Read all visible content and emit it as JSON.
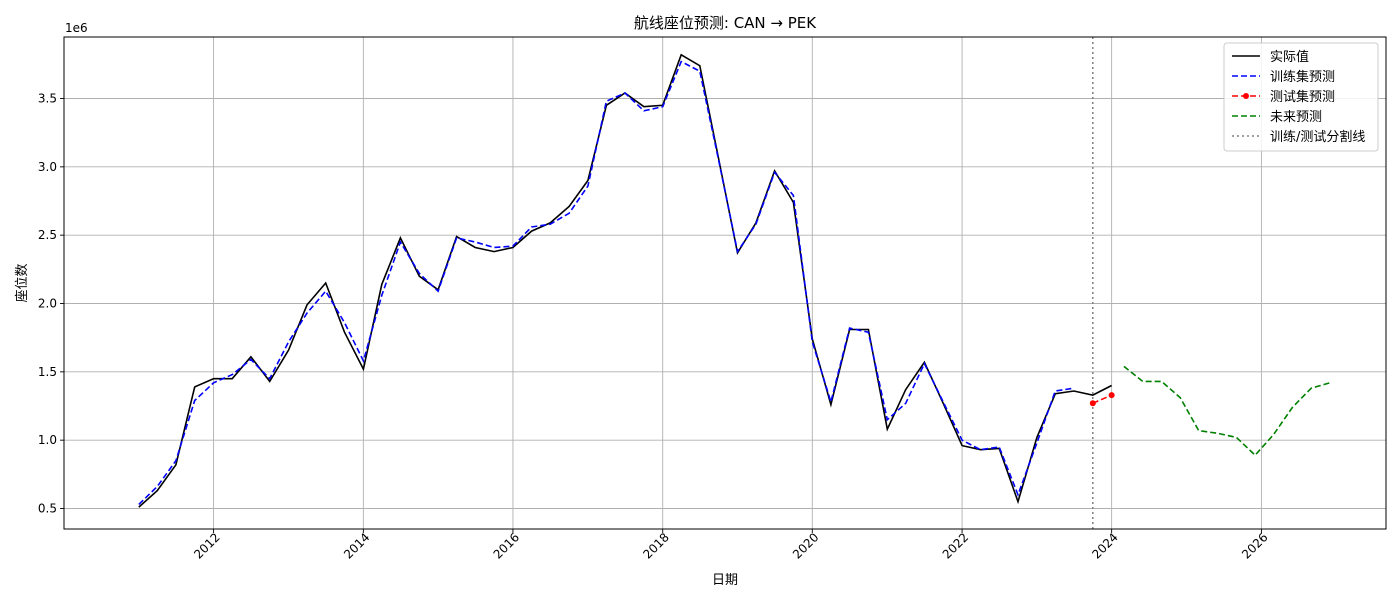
{
  "chart_data": {
    "type": "line",
    "title": "航线座位预测: CAN → PEK",
    "xlabel": "日期",
    "ylabel": "座位数",
    "y_offset_label": "1e6",
    "y_unit_multiplier": 1000000,
    "xlim": [
      "2010-01-01",
      "2027-09-01"
    ],
    "ylim": [
      0.35,
      3.95
    ],
    "x_ticks": [
      "2012-01-01",
      "2014-01-01",
      "2016-01-01",
      "2018-01-01",
      "2020-01-01",
      "2022-01-01",
      "2024-01-01",
      "2026-01-01"
    ],
    "x_tick_labels": [
      "2012",
      "2014",
      "2016",
      "2018",
      "2020",
      "2022",
      "2024",
      "2026"
    ],
    "y_ticks": [
      0.5,
      1.0,
      1.5,
      2.0,
      2.5,
      3.0,
      3.5
    ],
    "y_tick_labels": [
      "0.5",
      "1.0",
      "1.5",
      "2.0",
      "2.5",
      "3.0",
      "3.5"
    ],
    "grid": true,
    "legend_position": "top-right",
    "split_line": {
      "x": "2023-10-01",
      "color": "#808080",
      "style": "dotted"
    },
    "series": [
      {
        "name": "实际值",
        "color": "#000000",
        "style": "solid",
        "marker": false,
        "x": [
          "2011-01-01",
          "2011-04-01",
          "2011-07-01",
          "2011-10-01",
          "2012-01-01",
          "2012-04-01",
          "2012-07-01",
          "2012-10-01",
          "2013-01-01",
          "2013-04-01",
          "2013-07-01",
          "2013-10-01",
          "2014-01-01",
          "2014-04-01",
          "2014-07-01",
          "2014-10-01",
          "2015-01-01",
          "2015-04-01",
          "2015-07-01",
          "2015-10-01",
          "2016-01-01",
          "2016-04-01",
          "2016-07-01",
          "2016-10-01",
          "2017-01-01",
          "2017-04-01",
          "2017-07-01",
          "2017-10-01",
          "2018-01-01",
          "2018-04-01",
          "2018-07-01",
          "2018-10-01",
          "2019-01-01",
          "2019-04-01",
          "2019-07-01",
          "2019-10-01",
          "2020-01-01",
          "2020-04-01",
          "2020-07-01",
          "2020-10-01",
          "2021-01-01",
          "2021-04-01",
          "2021-07-01",
          "2021-10-01",
          "2022-01-01",
          "2022-04-01",
          "2022-07-01",
          "2022-10-01",
          "2023-01-01",
          "2023-04-01",
          "2023-07-01",
          "2023-10-01",
          "2024-01-01"
        ],
        "y": [
          0.51,
          0.63,
          0.82,
          1.39,
          1.45,
          1.45,
          1.61,
          1.43,
          1.66,
          1.99,
          2.15,
          1.79,
          1.52,
          2.14,
          2.48,
          2.2,
          2.1,
          2.49,
          2.41,
          2.38,
          2.41,
          2.53,
          2.59,
          2.71,
          2.9,
          3.45,
          3.54,
          3.44,
          3.45,
          3.82,
          3.74,
          3.06,
          2.37,
          2.59,
          2.97,
          2.74,
          1.74,
          1.26,
          1.81,
          1.81,
          1.08,
          1.37,
          1.57,
          1.27,
          0.96,
          0.93,
          0.94,
          0.55,
          1.02,
          1.34,
          1.36,
          1.33,
          1.4
        ]
      },
      {
        "name": "训练集预测",
        "color": "#0000ff",
        "style": "dashed",
        "marker": false,
        "x": [
          "2011-01-01",
          "2011-04-01",
          "2011-07-01",
          "2011-10-01",
          "2012-01-01",
          "2012-04-01",
          "2012-07-01",
          "2012-10-01",
          "2013-01-01",
          "2013-04-01",
          "2013-07-01",
          "2013-10-01",
          "2014-01-01",
          "2014-04-01",
          "2014-07-01",
          "2014-10-01",
          "2015-01-01",
          "2015-04-01",
          "2015-07-01",
          "2015-10-01",
          "2016-01-01",
          "2016-04-01",
          "2016-07-01",
          "2016-10-01",
          "2017-01-01",
          "2017-04-01",
          "2017-07-01",
          "2017-10-01",
          "2018-01-01",
          "2018-04-01",
          "2018-07-01",
          "2018-10-01",
          "2019-01-01",
          "2019-04-01",
          "2019-07-01",
          "2019-10-01",
          "2020-01-01",
          "2020-04-01",
          "2020-07-01",
          "2020-10-01",
          "2021-01-01",
          "2021-04-01",
          "2021-07-01",
          "2021-10-01",
          "2022-01-01",
          "2022-04-01",
          "2022-07-01",
          "2022-10-01",
          "2023-01-01",
          "2023-04-01",
          "2023-07-01"
        ],
        "y": [
          0.53,
          0.66,
          0.85,
          1.29,
          1.42,
          1.48,
          1.59,
          1.45,
          1.72,
          1.93,
          2.09,
          1.86,
          1.58,
          2.06,
          2.45,
          2.22,
          2.09,
          2.48,
          2.45,
          2.41,
          2.42,
          2.56,
          2.58,
          2.66,
          2.86,
          3.48,
          3.54,
          3.41,
          3.44,
          3.77,
          3.7,
          3.05,
          2.38,
          2.58,
          2.96,
          2.79,
          1.72,
          1.28,
          1.82,
          1.79,
          1.15,
          1.27,
          1.56,
          1.28,
          1.0,
          0.93,
          0.95,
          0.6,
          0.98,
          1.36,
          1.38
        ]
      },
      {
        "name": "测试集预测",
        "color": "#ff0000",
        "style": "dashed",
        "marker": true,
        "x": [
          "2023-10-01",
          "2024-01-01"
        ],
        "y": [
          1.27,
          1.33
        ]
      },
      {
        "name": "未来预测",
        "color": "#008000",
        "style": "dashed",
        "marker": false,
        "x": [
          "2024-03-01",
          "2024-06-01",
          "2024-09-01",
          "2024-12-01",
          "2025-03-01",
          "2025-06-01",
          "2025-09-01",
          "2025-12-01",
          "2026-03-01",
          "2026-06-01",
          "2026-09-01",
          "2026-12-01"
        ],
        "y": [
          1.54,
          1.43,
          1.43,
          1.31,
          1.07,
          1.05,
          1.02,
          0.89,
          1.04,
          1.24,
          1.38,
          1.42
        ]
      }
    ],
    "legend_entries": [
      "实际值",
      "训练集预测",
      "测试集预测",
      "未来预测",
      "训练/测试分割线"
    ]
  }
}
